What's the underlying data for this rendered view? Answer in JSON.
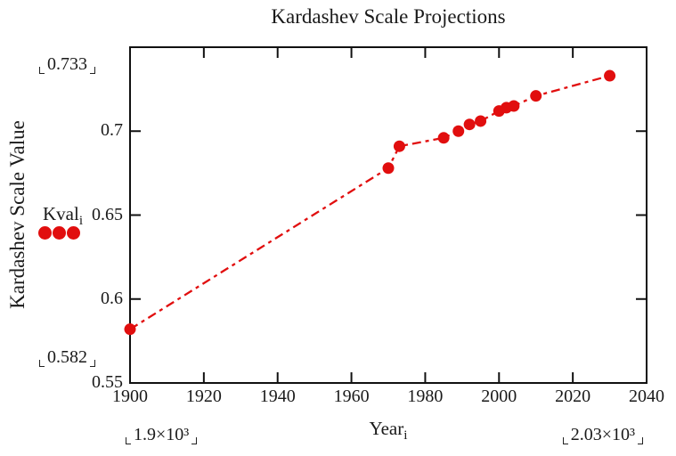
{
  "chart_data": {
    "type": "line",
    "title": "Kardashev Scale Projections",
    "xlabel": "Year",
    "xlabel_subscript": "i",
    "ylabel": "Kardashev Scale Value",
    "legend": {
      "label": "Kval",
      "subscript": "i",
      "marker": "three-red-dots"
    },
    "xlim": [
      1900,
      2040
    ],
    "ylim": [
      0.55,
      0.75
    ],
    "x_tick_labels": [
      "1900",
      "1920",
      "1940",
      "1960",
      "1980",
      "2000",
      "2020",
      "2040"
    ],
    "y_tick_labels": [
      "0.55",
      "0.6",
      "0.65",
      "0.7"
    ],
    "axis_limit_markers": {
      "y_max": "0.733",
      "y_min": "0.582",
      "x_min": "1.9×10³",
      "x_max": "2.03×10³"
    },
    "grid": false,
    "legend_position": "outside-left-middle",
    "series": [
      {
        "name": "Kval",
        "x": [
          1900,
          1970,
          1973,
          1985,
          1989,
          1992,
          1995,
          2000,
          2002,
          2004,
          2010,
          2030
        ],
        "y": [
          0.582,
          0.678,
          0.691,
          0.696,
          0.7,
          0.704,
          0.706,
          0.712,
          0.714,
          0.715,
          0.721,
          0.733
        ],
        "color": "#e10e0e",
        "line_style": "dash-dot",
        "marker": "filled-circle"
      }
    ],
    "colors": {
      "accent_red": "#e10e0e",
      "frame": "#111111",
      "text": "#1a1a1a"
    }
  }
}
